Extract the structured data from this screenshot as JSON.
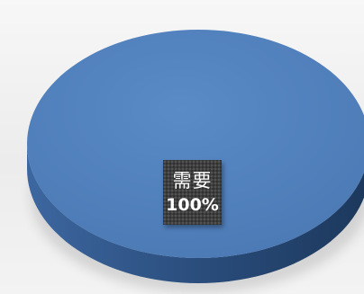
{
  "chart_data": {
    "type": "pie",
    "style": "3d",
    "categories": [
      "需要"
    ],
    "values": [
      100
    ],
    "data_labels": [
      {
        "category": "需要",
        "value": "100%"
      }
    ],
    "colors": {
      "top": "#4f81bd",
      "side": "#2f5585",
      "side_dark": "#1d3a5e",
      "label_background": "#3f3f3f"
    },
    "title": "",
    "legend": "none"
  }
}
